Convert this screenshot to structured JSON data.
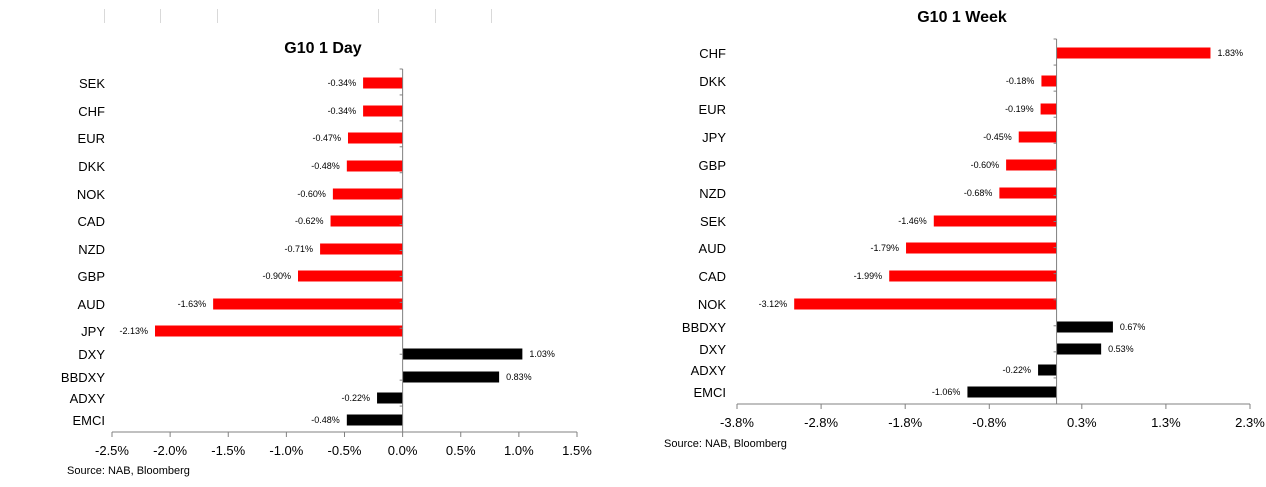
{
  "colors": {
    "negative": "#ff0000",
    "positive": "#000000",
    "axis": "#808080"
  },
  "chart_data": [
    {
      "type": "bar",
      "orientation": "horizontal",
      "title": "G10 1 Day",
      "source": "Source: NAB, Bloomberg",
      "categories": [
        "SEK",
        "CHF",
        "EUR",
        "DKK",
        "NOK",
        "CAD",
        "NZD",
        "GBP",
        "AUD",
        "JPY",
        "DXY",
        "BBDXY",
        "ADXY",
        "EMCI"
      ],
      "values": [
        -0.34,
        -0.34,
        -0.47,
        -0.48,
        -0.6,
        -0.62,
        -0.71,
        -0.9,
        -1.63,
        -2.13,
        1.03,
        0.83,
        -0.22,
        -0.48
      ],
      "data_labels": [
        "-0.34%",
        "-0.34%",
        "-0.47%",
        "-0.48%",
        "-0.60%",
        "-0.62%",
        "-0.71%",
        "-0.90%",
        "-1.63%",
        "-2.13%",
        "1.03%",
        "0.83%",
        "-0.22%",
        "-0.48%"
      ],
      "bar_colors": [
        "#ff0000",
        "#ff0000",
        "#ff0000",
        "#ff0000",
        "#ff0000",
        "#ff0000",
        "#ff0000",
        "#ff0000",
        "#ff0000",
        "#ff0000",
        "#000000",
        "#000000",
        "#000000",
        "#000000"
      ],
      "xlim": [
        -2.5,
        1.5
      ],
      "xticks": [
        -2.5,
        -2.0,
        -1.5,
        -1.0,
        -0.5,
        0.0,
        0.5,
        1.0,
        1.5
      ],
      "xtick_labels": [
        "-2.5%",
        "-2.0%",
        "-1.5%",
        "-1.0%",
        "-0.5%",
        "0.0%",
        "0.5%",
        "1.0%",
        "1.5%"
      ],
      "grid": false,
      "legend": "none"
    },
    {
      "type": "bar",
      "orientation": "horizontal",
      "title": "G10 1 Week",
      "source": "Source: NAB, Bloomberg",
      "categories": [
        "CHF",
        "DKK",
        "EUR",
        "JPY",
        "GBP",
        "NZD",
        "SEK",
        "AUD",
        "CAD",
        "NOK",
        "BBDXY",
        "DXY",
        "ADXY",
        "EMCI"
      ],
      "values": [
        1.83,
        -0.18,
        -0.19,
        -0.45,
        -0.6,
        -0.68,
        -1.46,
        -1.79,
        -1.99,
        -3.12,
        0.67,
        0.53,
        -0.22,
        -1.06
      ],
      "data_labels": [
        "1.83%",
        "-0.18%",
        "-0.19%",
        "-0.45%",
        "-0.60%",
        "-0.68%",
        "-1.46%",
        "-1.79%",
        "-1.99%",
        "-3.12%",
        "0.67%",
        "0.53%",
        "-0.22%",
        "-1.06%"
      ],
      "bar_colors": [
        "#ff0000",
        "#ff0000",
        "#ff0000",
        "#ff0000",
        "#ff0000",
        "#ff0000",
        "#ff0000",
        "#ff0000",
        "#ff0000",
        "#ff0000",
        "#000000",
        "#000000",
        "#000000",
        "#000000"
      ],
      "xlim": [
        -3.8,
        2.3
      ],
      "xticks": [
        -3.8,
        -2.8,
        -1.8,
        -0.8,
        0.3,
        1.3,
        2.3
      ],
      "xtick_labels": [
        "-3.8%",
        "-2.8%",
        "-1.8%",
        "-0.8%",
        "0.3%",
        "1.3%",
        "2.3%"
      ],
      "grid": false,
      "legend": "none"
    }
  ]
}
